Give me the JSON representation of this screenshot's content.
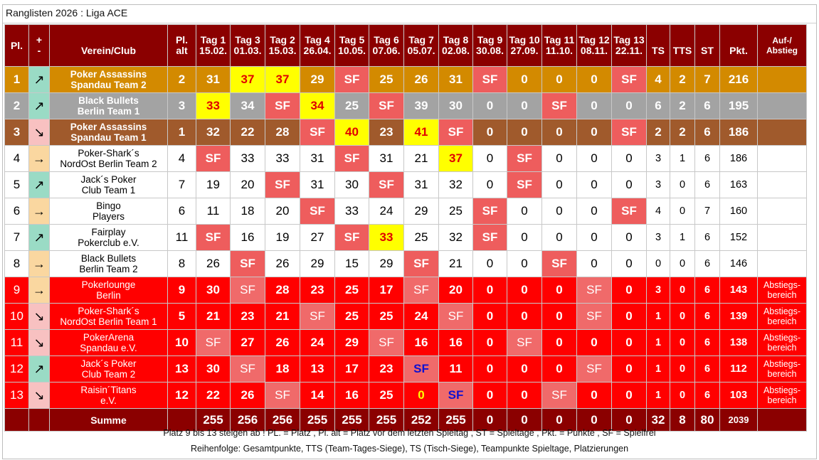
{
  "title": "Ranglisten 2026 : Liga ACE",
  "headers": {
    "pl": "Pl.",
    "trend_top": "+",
    "trend_bottom": "-",
    "club": "Verein/Club",
    "plalt_1": "Pl.",
    "plalt_2": "alt",
    "days": [
      {
        "label": "Tag 1",
        "date": "15.02."
      },
      {
        "label": "Tag 3",
        "date": "01.03."
      },
      {
        "label": "Tag 2",
        "date": "15.03."
      },
      {
        "label": "Tag 4",
        "date": "26.04."
      },
      {
        "label": "Tag 5",
        "date": "10.05."
      },
      {
        "label": "Tag 6",
        "date": "07.06."
      },
      {
        "label": "Tag 7",
        "date": "05.07."
      },
      {
        "label": "Tag 8",
        "date": "02.08."
      },
      {
        "label": "Tag 9",
        "date": "30.08."
      },
      {
        "label": "Tag 10",
        "date": "27.09."
      },
      {
        "label": "Tag 11",
        "date": "11.10."
      },
      {
        "label": "Tag 12",
        "date": "08.11."
      },
      {
        "label": "Tag 13",
        "date": "22.11."
      }
    ],
    "ts": "TS",
    "tts": "TTS",
    "st": "ST",
    "pkt": "Pkt.",
    "auf_1": "Auf-/",
    "auf_2": "Abstieg"
  },
  "trend_icons": {
    "up": "arrow-up-right-icon",
    "down": "arrow-down-right-icon",
    "same": "arrow-right-icon"
  },
  "trend_glyphs": {
    "up": "↗",
    "down": "↘",
    "same": "→"
  },
  "colors": {
    "header": "#8b0000",
    "gold": "#d38a00",
    "silver": "#a3a3a3",
    "bronze": "#a05a2c",
    "relegation": "#ff0000",
    "spielfrei": "#ee5d5d",
    "highlight": "#ffff00"
  },
  "rows": [
    {
      "pl": "1",
      "trend": "up",
      "club1": "Poker Assassins",
      "club2": "Spandau Team 2",
      "plalt": "2",
      "days": [
        "31",
        "37",
        "37",
        "29",
        "SF",
        "25",
        "26",
        "31",
        "SF",
        "0",
        "0",
        "0",
        "SF"
      ],
      "ts": "4",
      "tts": "2",
      "st": "7",
      "pkt": "216",
      "auf1": "",
      "auf2": ""
    },
    {
      "pl": "2",
      "trend": "up",
      "club1": "Black Bullets",
      "club2": "Berlin Team 1",
      "plalt": "3",
      "days": [
        "33",
        "34",
        "SF",
        "34",
        "25",
        "SF",
        "39",
        "30",
        "0",
        "0",
        "SF",
        "0",
        "0"
      ],
      "ts": "6",
      "tts": "2",
      "st": "6",
      "pkt": "195",
      "auf1": "",
      "auf2": ""
    },
    {
      "pl": "3",
      "trend": "down",
      "club1": "Poker Assassins",
      "club2": "Spandau Team 1",
      "plalt": "1",
      "days": [
        "32",
        "22",
        "28",
        "SF",
        "40",
        "23",
        "41",
        "SF",
        "0",
        "0",
        "0",
        "0",
        "SF"
      ],
      "ts": "2",
      "tts": "2",
      "st": "6",
      "pkt": "186",
      "auf1": "",
      "auf2": ""
    },
    {
      "pl": "4",
      "trend": "same",
      "club1": "Poker-Shark´s",
      "club2": "NordOst Berlin Team 2",
      "plalt": "4",
      "days": [
        "SF",
        "33",
        "33",
        "31",
        "SF",
        "31",
        "21",
        "37",
        "0",
        "SF",
        "0",
        "0",
        "0"
      ],
      "ts": "3",
      "tts": "1",
      "st": "6",
      "pkt": "186",
      "auf1": "",
      "auf2": ""
    },
    {
      "pl": "5",
      "trend": "up",
      "club1": "Jack´s Poker",
      "club2": "Club Team 1",
      "plalt": "7",
      "days": [
        "19",
        "20",
        "SF",
        "31",
        "30",
        "SF",
        "31",
        "32",
        "0",
        "SF",
        "0",
        "0",
        "0"
      ],
      "ts": "3",
      "tts": "0",
      "st": "6",
      "pkt": "163",
      "auf1": "",
      "auf2": ""
    },
    {
      "pl": "6",
      "trend": "same",
      "club1": "Bingo",
      "club2": "Players",
      "plalt": "6",
      "days": [
        "11",
        "18",
        "20",
        "SF",
        "33",
        "24",
        "29",
        "25",
        "SF",
        "0",
        "0",
        "0",
        "SF"
      ],
      "ts": "4",
      "tts": "0",
      "st": "7",
      "pkt": "160",
      "auf1": "",
      "auf2": ""
    },
    {
      "pl": "7",
      "trend": "up",
      "club1": "Fairplay",
      "club2": "Pokerclub e.V.",
      "plalt": "11",
      "days": [
        "SF",
        "16",
        "19",
        "27",
        "SF",
        "33",
        "25",
        "32",
        "SF",
        "0",
        "0",
        "0",
        "0"
      ],
      "ts": "3",
      "tts": "1",
      "st": "6",
      "pkt": "152",
      "auf1": "",
      "auf2": ""
    },
    {
      "pl": "8",
      "trend": "same",
      "club1": "Black Bullets",
      "club2": "Berlin Team 2",
      "plalt": "8",
      "days": [
        "26",
        "SF",
        "26",
        "29",
        "15",
        "29",
        "SF",
        "21",
        "0",
        "0",
        "SF",
        "0",
        "0"
      ],
      "ts": "0",
      "tts": "0",
      "st": "6",
      "pkt": "146",
      "auf1": "",
      "auf2": ""
    },
    {
      "pl": "9",
      "trend": "same",
      "club1": "Pokerlounge",
      "club2": "Berlin",
      "plalt": "9",
      "days": [
        "30",
        "SF",
        "28",
        "23",
        "25",
        "17",
        "SF",
        "20",
        "0",
        "0",
        "0",
        "SF",
        "0"
      ],
      "ts": "3",
      "tts": "0",
      "st": "6",
      "pkt": "143",
      "auf1": "Abstiegs-",
      "auf2": "bereich"
    },
    {
      "pl": "10",
      "trend": "down",
      "club1": "Poker-Shark´s",
      "club2": "NordOst Berlin Team 1",
      "plalt": "5",
      "days": [
        "21",
        "23",
        "21",
        "SF",
        "25",
        "25",
        "24",
        "SF",
        "0",
        "0",
        "0",
        "SF",
        "0"
      ],
      "ts": "1",
      "tts": "0",
      "st": "6",
      "pkt": "139",
      "auf1": "Abstiegs-",
      "auf2": "bereich"
    },
    {
      "pl": "11",
      "trend": "down",
      "club1": "PokerArena",
      "club2": "Spandau e.V.",
      "plalt": "10",
      "days": [
        "SF",
        "27",
        "26",
        "24",
        "29",
        "SF",
        "16",
        "16",
        "0",
        "SF",
        "0",
        "0",
        "0"
      ],
      "ts": "1",
      "tts": "0",
      "st": "6",
      "pkt": "138",
      "auf1": "Abstiegs-",
      "auf2": "bereich"
    },
    {
      "pl": "12",
      "trend": "up",
      "club1": "Jack´s Poker",
      "club2": "Club Team 2",
      "plalt": "13",
      "days": [
        "30",
        "SF",
        "18",
        "13",
        "17",
        "23",
        "SF",
        "11",
        "0",
        "0",
        "0",
        "SF",
        "0"
      ],
      "ts": "1",
      "tts": "0",
      "st": "6",
      "pkt": "112",
      "auf1": "Abstiegs-",
      "auf2": "bereich"
    },
    {
      "pl": "13",
      "trend": "down",
      "club1": "Raisin´Titans",
      "club2": "e.V.",
      "plalt": "12",
      "days": [
        "22",
        "26",
        "SF",
        "14",
        "16",
        "25",
        "0",
        "SF",
        "0",
        "0",
        "SF",
        "0",
        "0"
      ],
      "ts": "1",
      "tts": "0",
      "st": "6",
      "pkt": "103",
      "auf1": "Abstiegs-",
      "auf2": "bereich"
    }
  ],
  "summe": {
    "label": "Summe",
    "days": [
      "255",
      "256",
      "256",
      "255",
      "255",
      "255",
      "252",
      "255",
      "0",
      "0",
      "0",
      "0",
      "0"
    ],
    "ts": "32",
    "tts": "8",
    "st": "80",
    "pkt": "2039"
  },
  "footer_line1": "Platz 9 bis 13 steigen ab ! PL. = Platz , Pl. alt = Platz vor dem letzten Spieltag , ST = Spieltage , Pkt. = Punkte , SF = Spielfrei",
  "footer_line2": "Reihenfolge: Gesamtpunkte, TTS (Team-Tages-Siege), TS (Tisch-Siege), Teampunkte Spieltage, Platzierungen"
}
